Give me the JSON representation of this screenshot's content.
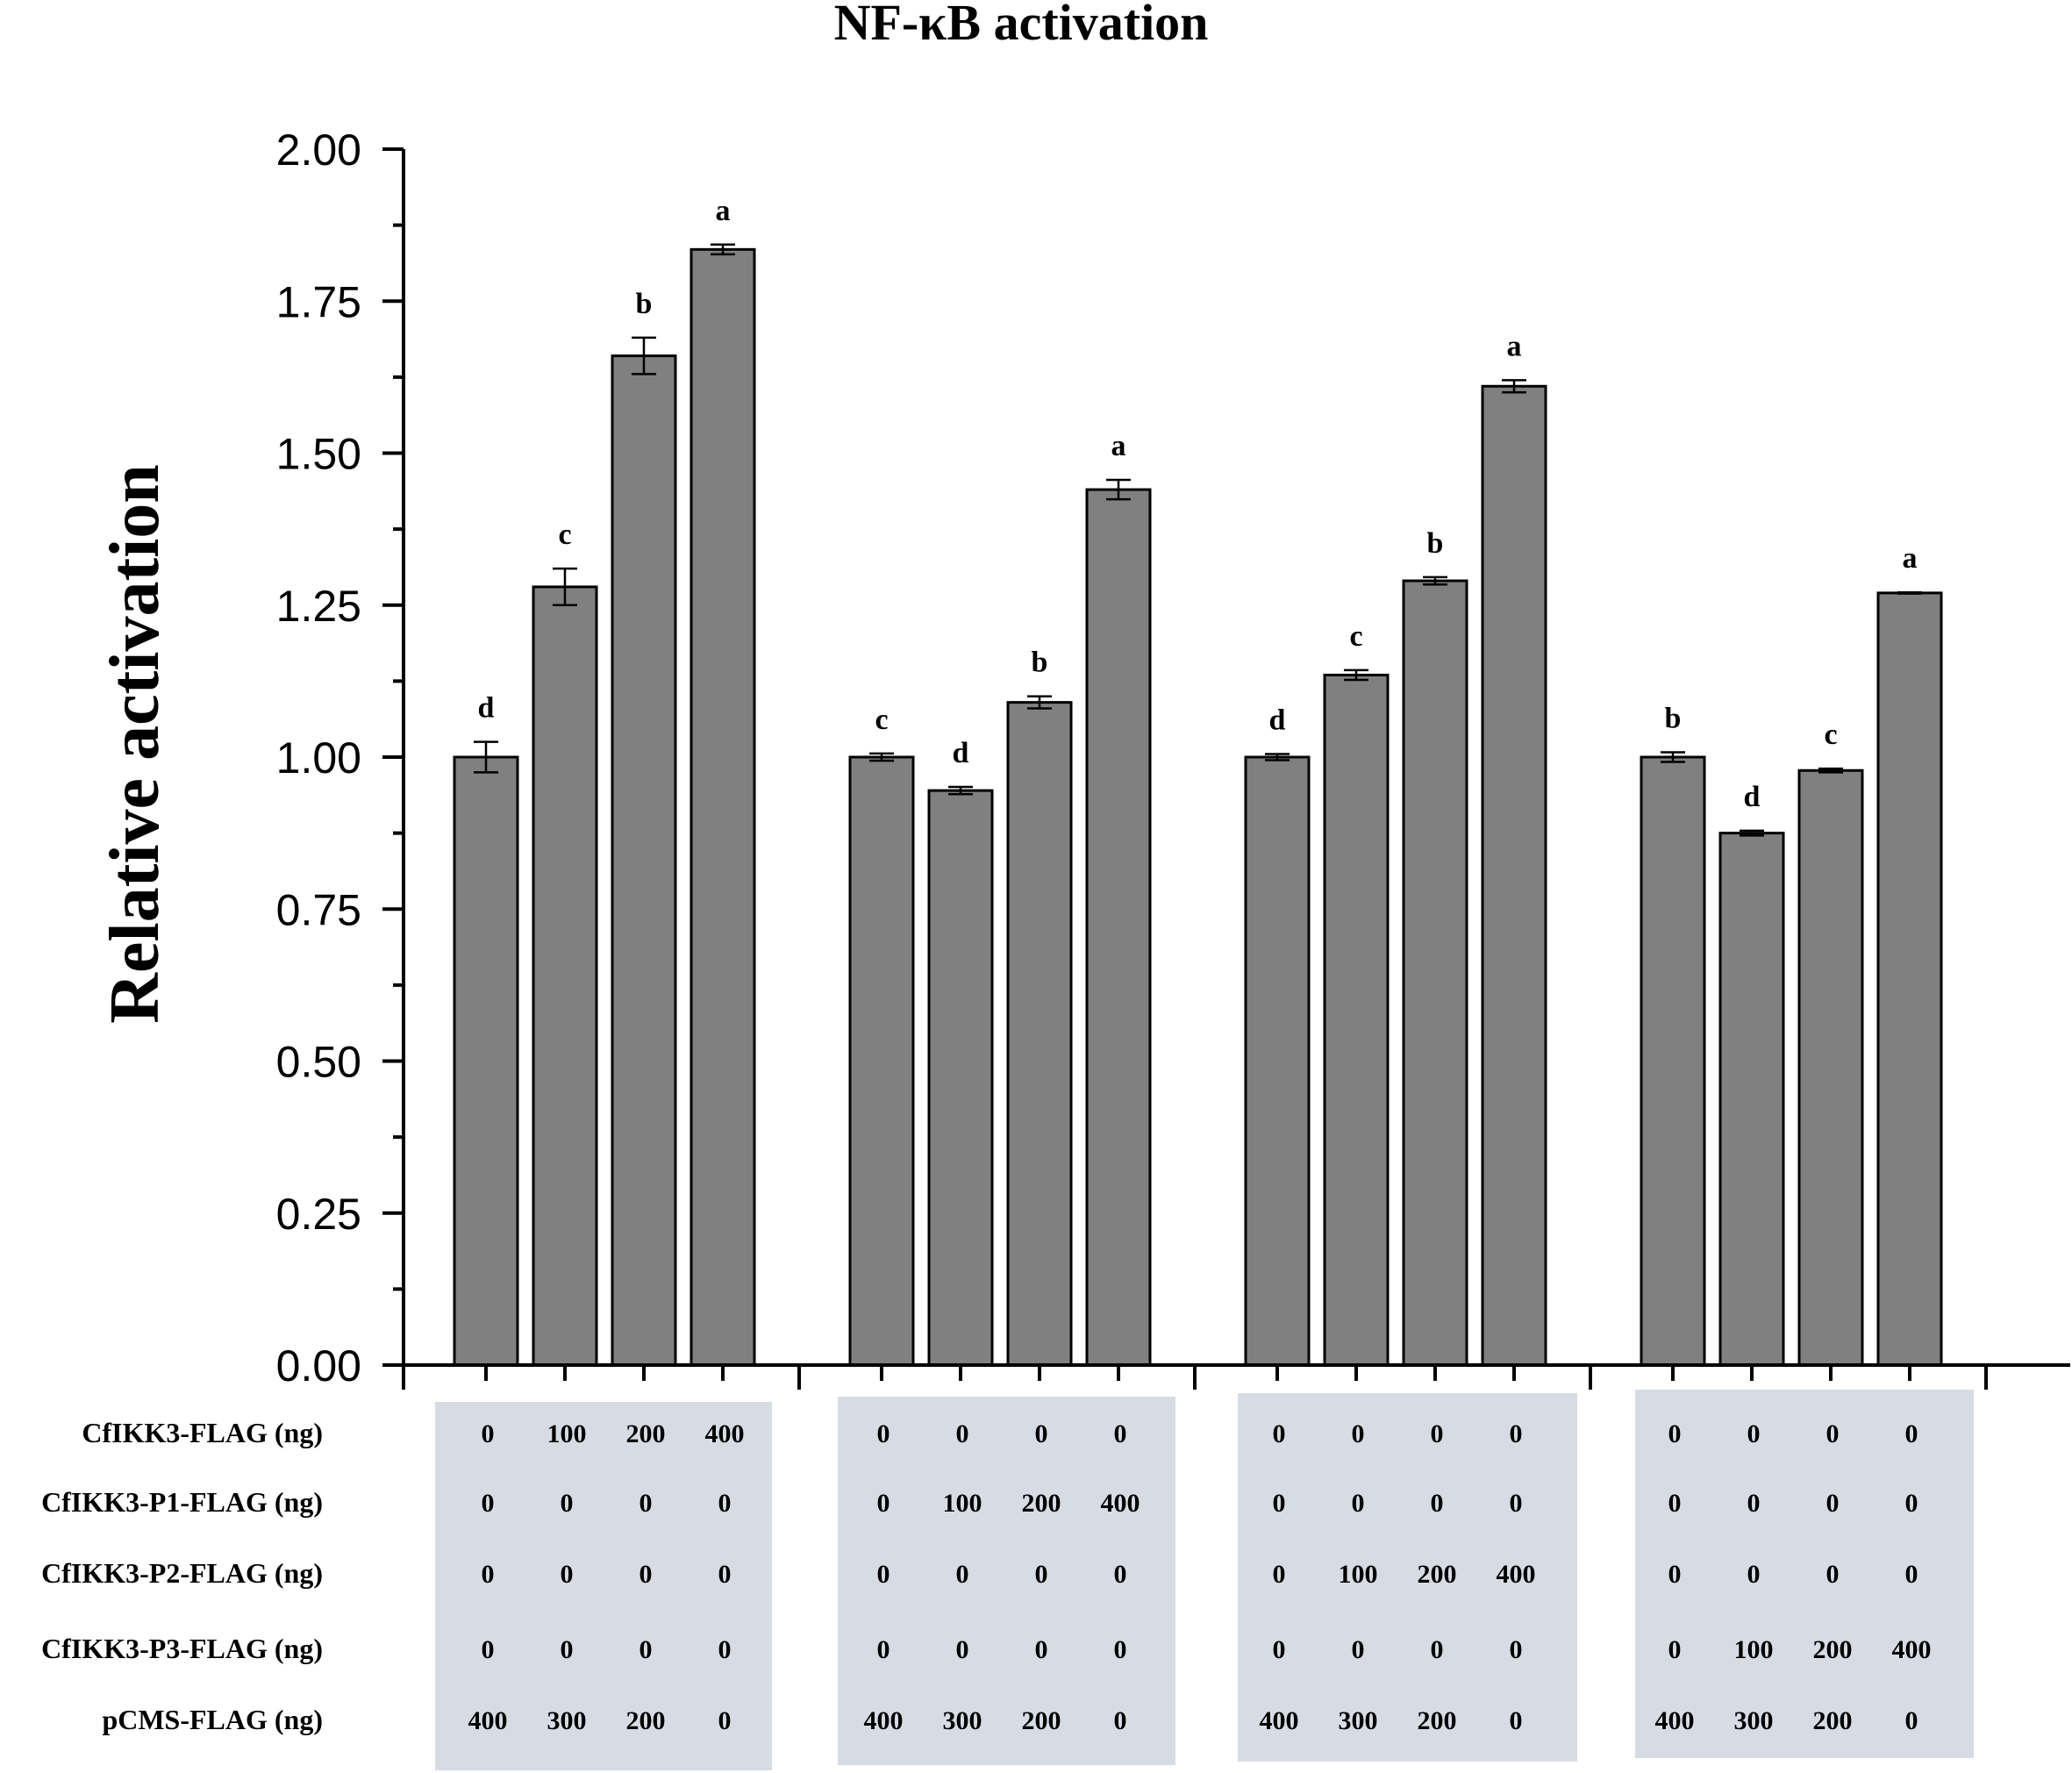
{
  "chart_data": {
    "type": "bar",
    "title": "NF-κB activation",
    "ylabel": "Relative activation",
    "xlabel": "",
    "ylim": [
      0,
      2.0
    ],
    "yticks": [
      "0.00",
      "0.25",
      "0.50",
      "0.75",
      "1.00",
      "1.25",
      "1.50",
      "1.75",
      "2.00"
    ],
    "groups": [
      {
        "values": [
          1.0,
          1.28,
          1.66,
          1.835
        ],
        "errors": [
          0.025,
          0.03,
          0.03,
          0.008
        ],
        "letters": [
          "d",
          "c",
          "b",
          "a"
        ],
        "table": [
          [
            "0",
            "100",
            "200",
            "400"
          ],
          [
            "0",
            "0",
            "0",
            "0"
          ],
          [
            "0",
            "0",
            "0",
            "0"
          ],
          [
            "0",
            "0",
            "0",
            "0"
          ],
          [
            "400",
            "300",
            "200",
            "0"
          ]
        ]
      },
      {
        "values": [
          1.0,
          0.945,
          1.09,
          1.44
        ],
        "errors": [
          0.006,
          0.006,
          0.01,
          0.016
        ],
        "letters": [
          "c",
          "d",
          "b",
          "a"
        ],
        "table": [
          [
            "0",
            "0",
            "0",
            "0"
          ],
          [
            "0",
            "100",
            "200",
            "400"
          ],
          [
            "0",
            "0",
            "0",
            "0"
          ],
          [
            "0",
            "0",
            "0",
            "0"
          ],
          [
            "400",
            "300",
            "200",
            "0"
          ]
        ]
      },
      {
        "values": [
          1.0,
          1.135,
          1.29,
          1.61
        ],
        "errors": [
          0.005,
          0.008,
          0.006,
          0.01
        ],
        "letters": [
          "d",
          "c",
          "b",
          "a"
        ],
        "table": [
          [
            "0",
            "0",
            "0",
            "0"
          ],
          [
            "0",
            "0",
            "0",
            "0"
          ],
          [
            "0",
            "100",
            "200",
            "400"
          ],
          [
            "0",
            "0",
            "0",
            "0"
          ],
          [
            "400",
            "300",
            "200",
            "0"
          ]
        ]
      },
      {
        "values": [
          1.0,
          0.875,
          0.978,
          1.27
        ],
        "errors": [
          0.008,
          0.004,
          0.003,
          0.001
        ],
        "letters": [
          "b",
          "d",
          "c",
          "a"
        ],
        "table": [
          [
            "0",
            "0",
            "0",
            "0"
          ],
          [
            "0",
            "0",
            "0",
            "0"
          ],
          [
            "0",
            "0",
            "0",
            "0"
          ],
          [
            "0",
            "100",
            "200",
            "400"
          ],
          [
            "400",
            "300",
            "200",
            "0"
          ]
        ]
      }
    ],
    "row_labels": [
      "CfIKK3-FLAG (ng)",
      "CfIKK3-P1-FLAG (ng)",
      "CfIKK3-P2-FLAG (ng)",
      "CfIKK3-P3-FLAG (ng)",
      "pCMS-FLAG (ng)"
    ]
  },
  "colors": {
    "bar_fill": "#808080",
    "panel_fill": "#d7dce4"
  }
}
